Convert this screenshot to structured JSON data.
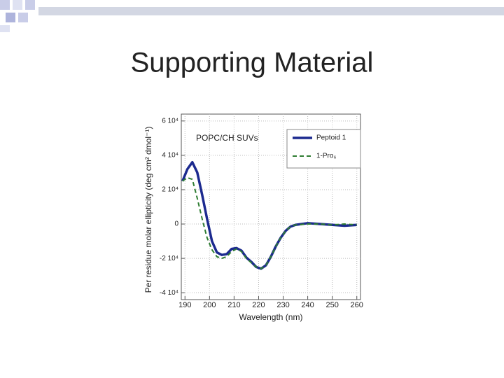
{
  "slide_title": "Supporting Material",
  "chart_data": {
    "type": "line",
    "annotation": "POPC/CH SUVs",
    "x_label": "Wavelength (nm)",
    "y_label": "Per residue molar ellipticity (deg cm² dmol⁻¹)",
    "x": [
      189,
      191,
      193,
      195,
      197,
      199,
      201,
      203,
      205,
      207,
      209,
      211,
      213,
      215,
      217,
      219,
      221,
      223,
      225,
      227,
      229,
      231,
      233,
      235,
      240,
      245,
      250,
      255,
      260
    ],
    "series": [
      {
        "name": "Peptoid 1",
        "color": "#1c2a8f",
        "dash": false,
        "values": [
          25000,
          32000,
          36000,
          30000,
          17000,
          3000,
          -10000,
          -16500,
          -18000,
          -17500,
          -14500,
          -14000,
          -15500,
          -19500,
          -22000,
          -25000,
          -26000,
          -24000,
          -19000,
          -13000,
          -8000,
          -4000,
          -1500,
          -500,
          500,
          0,
          -500,
          -1000,
          -500
        ]
      },
      {
        "name": "1-Pro₆",
        "color": "#2e7d32",
        "dash": true,
        "values": [
          25000,
          27000,
          26000,
          15000,
          3000,
          -8000,
          -15000,
          -19000,
          -20000,
          -19000,
          -16000,
          -14500,
          -16000,
          -20000,
          -22500,
          -25000,
          -26000,
          -24000,
          -19000,
          -13000,
          -8000,
          -4000,
          -1500,
          -500,
          0,
          0,
          -500,
          0,
          -500
        ]
      }
    ],
    "xlim": [
      188.5,
      261.5
    ],
    "xticks": [
      190,
      200,
      210,
      220,
      230,
      240,
      250,
      260
    ],
    "ylim": [
      -44000,
      64000
    ],
    "yticks": [
      {
        "value": 60000,
        "label": "6 10⁴"
      },
      {
        "value": 40000,
        "label": "4 10⁴"
      },
      {
        "value": 20000,
        "label": "2 10⁴"
      },
      0,
      {
        "value": -20000,
        "label": "-2 10⁴"
      },
      {
        "value": -40000,
        "label": "-4 10⁴"
      }
    ],
    "grid": true,
    "legend": "upper right"
  }
}
